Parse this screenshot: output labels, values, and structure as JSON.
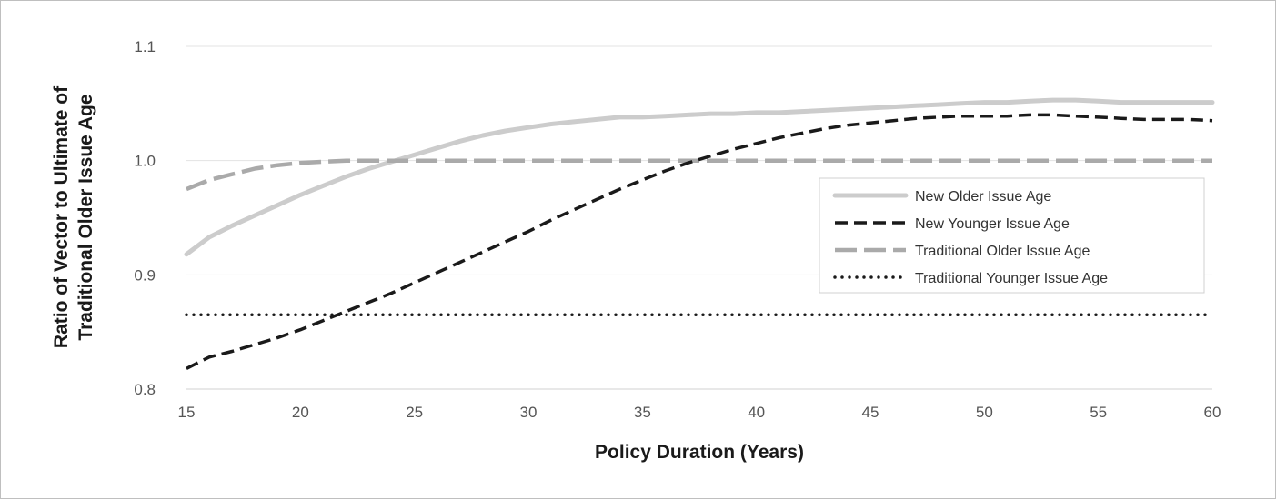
{
  "chart_data": {
    "type": "line",
    "title": "",
    "xlabel": "Policy Duration (Years)",
    "ylabel_line1": "Ratio of Vector to Ultimate of",
    "ylabel_line2": "Traditional Older Issue Age",
    "xlim": [
      15,
      60
    ],
    "ylim": [
      0.8,
      1.1
    ],
    "x_ticks": [
      15,
      20,
      25,
      30,
      35,
      40,
      45,
      50,
      55,
      60
    ],
    "x_tick_labels": [
      "15",
      "20",
      "25",
      "30",
      "35",
      "40",
      "45",
      "50",
      "55",
      "60"
    ],
    "y_ticks": [
      0.8,
      0.9,
      1.0,
      1.1
    ],
    "y_tick_labels": [
      "0.8",
      "0.9",
      "1.0",
      "1.1"
    ],
    "grid": "horizontal",
    "legend_position": "right",
    "series": [
      {
        "name": "New Older Issue Age",
        "color": "#cccccc",
        "style": "solid",
        "x": [
          15,
          16,
          17,
          18,
          19,
          20,
          21,
          22,
          23,
          24,
          25,
          26,
          27,
          28,
          29,
          30,
          31,
          32,
          33,
          34,
          35,
          36,
          37,
          38,
          39,
          40,
          41,
          42,
          43,
          44,
          45,
          46,
          47,
          48,
          49,
          50,
          51,
          52,
          53,
          54,
          55,
          56,
          57,
          58,
          59,
          60
        ],
        "values": [
          0.918,
          0.933,
          0.943,
          0.952,
          0.961,
          0.97,
          0.978,
          0.986,
          0.993,
          0.999,
          1.005,
          1.011,
          1.017,
          1.022,
          1.026,
          1.029,
          1.032,
          1.034,
          1.036,
          1.038,
          1.038,
          1.039,
          1.04,
          1.041,
          1.041,
          1.042,
          1.042,
          1.043,
          1.044,
          1.045,
          1.046,
          1.047,
          1.048,
          1.049,
          1.05,
          1.051,
          1.051,
          1.052,
          1.053,
          1.053,
          1.052,
          1.051,
          1.051,
          1.051,
          1.051,
          1.051
        ]
      },
      {
        "name": "New Younger Issue Age",
        "color": "#1a1a1a",
        "style": "dashed",
        "x": [
          15,
          16,
          17,
          18,
          19,
          20,
          21,
          22,
          23,
          24,
          25,
          26,
          27,
          28,
          29,
          30,
          31,
          32,
          33,
          34,
          35,
          36,
          37,
          38,
          39,
          40,
          41,
          42,
          43,
          44,
          45,
          46,
          47,
          48,
          49,
          50,
          51,
          52,
          53,
          54,
          55,
          56,
          57,
          58,
          59,
          60
        ],
        "values": [
          0.818,
          0.828,
          0.833,
          0.839,
          0.845,
          0.852,
          0.86,
          0.868,
          0.876,
          0.884,
          0.893,
          0.902,
          0.911,
          0.92,
          0.929,
          0.938,
          0.948,
          0.957,
          0.966,
          0.975,
          0.983,
          0.991,
          0.998,
          1.004,
          1.01,
          1.015,
          1.02,
          1.024,
          1.028,
          1.031,
          1.033,
          1.035,
          1.037,
          1.038,
          1.039,
          1.039,
          1.039,
          1.04,
          1.04,
          1.039,
          1.038,
          1.037,
          1.036,
          1.036,
          1.036,
          1.035
        ]
      },
      {
        "name": "Traditional Older Issue Age",
        "color": "#aaaaaa",
        "style": "long-dash",
        "x": [
          15,
          16,
          17,
          18,
          19,
          20,
          21,
          22,
          23,
          24,
          25,
          30,
          35,
          40,
          45,
          50,
          55,
          60
        ],
        "values": [
          0.975,
          0.983,
          0.988,
          0.993,
          0.996,
          0.998,
          0.999,
          1.0,
          1.0,
          1.0,
          1.0,
          1.0,
          1.0,
          1.0,
          1.0,
          1.0,
          1.0,
          1.0
        ]
      },
      {
        "name": "Traditional Younger Issue Age",
        "color": "#1a1a1a",
        "style": "dotted",
        "x": [
          15,
          60
        ],
        "values": [
          0.865,
          0.865
        ]
      }
    ]
  }
}
